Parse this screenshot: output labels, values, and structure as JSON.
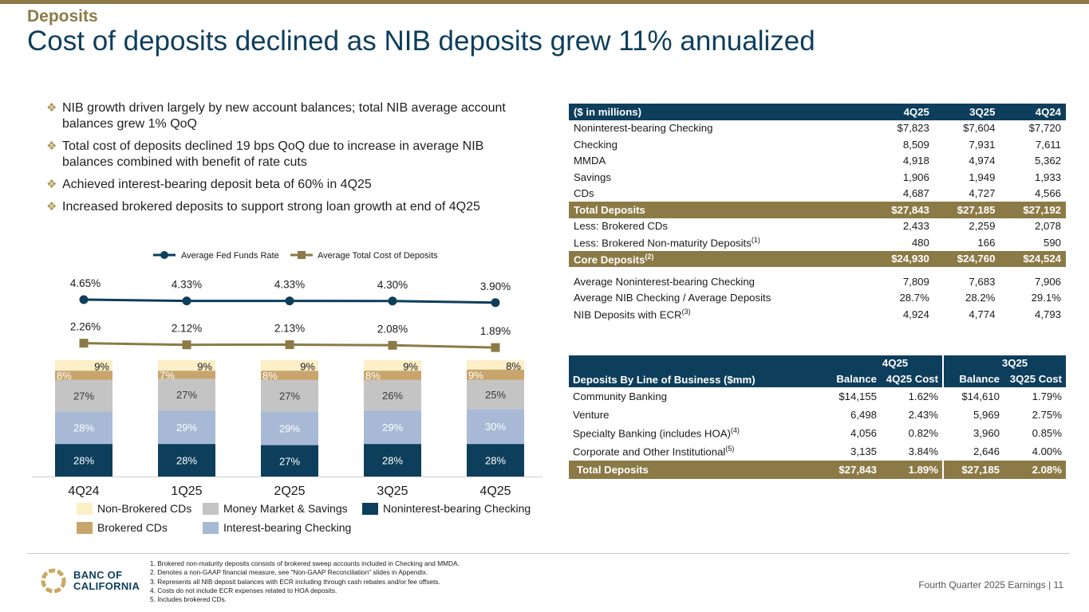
{
  "header": {
    "section": "Deposits",
    "title": "Cost of deposits declined as NIB deposits grew 11% annualized"
  },
  "bullets": [
    "NIB growth driven largely by new account balances; total NIB average account balances grew 1% QoQ",
    "Total cost of deposits declined 19 bps QoQ due to increase in average NIB balances combined with benefit of rate cuts",
    "Achieved interest-bearing deposit beta of 60% in 4Q25",
    "Increased brokered deposits to support strong loan growth at end of 4Q25"
  ],
  "chart_data": {
    "type": "bar",
    "stacked": true,
    "percent_stacked": true,
    "categories": [
      "4Q24",
      "1Q25",
      "2Q25",
      "3Q25",
      "4Q25"
    ],
    "series": [
      {
        "name": "Noninterest-bearing Checking",
        "color": "#0d3e5c",
        "labels": [
          "28%",
          "28%",
          "27%",
          "28%",
          "28%"
        ],
        "values": [
          28,
          28,
          27,
          28,
          28
        ]
      },
      {
        "name": "Interest-bearing Checking",
        "color": "#a7b9d4",
        "labels": [
          "28%",
          "29%",
          "29%",
          "29%",
          "30%"
        ],
        "values": [
          28,
          29,
          29,
          29,
          30
        ]
      },
      {
        "name": "Money Market & Savings",
        "color": "#c4c4c4",
        "labels": [
          "27%",
          "27%",
          "27%",
          "26%",
          "25%"
        ],
        "values": [
          27,
          27,
          27,
          26,
          25
        ]
      },
      {
        "name": "Brokered CDs",
        "color": "#c7a56c",
        "labels": [
          "8%",
          "7%",
          "8%",
          "8%",
          "9%"
        ],
        "values": [
          8,
          7,
          8,
          8,
          9
        ]
      },
      {
        "name": "Non-Brokered CDs",
        "color": "#fcefc7",
        "labels": [
          "9%",
          "9%",
          "9%",
          "9%",
          "8%"
        ],
        "values": [
          9,
          9,
          9,
          9,
          8
        ]
      }
    ],
    "lines": [
      {
        "name": "Average Fed Funds Rate",
        "color": "#0d3e5c",
        "values": [
          4.65,
          4.33,
          4.33,
          4.3,
          3.9
        ],
        "labels": [
          "4.65%",
          "4.33%",
          "4.33%",
          "4.30%",
          "3.90%"
        ]
      },
      {
        "name": "Average Total Cost of Deposits",
        "color": "#8c7a46",
        "values": [
          2.26,
          2.12,
          2.13,
          2.08,
          1.89
        ],
        "labels": [
          "2.26%",
          "2.12%",
          "2.13%",
          "2.08%",
          "1.89%"
        ]
      }
    ],
    "line_legend": [
      "Average Fed Funds Rate",
      "Average Total Cost of Deposits"
    ],
    "bar_legend": [
      "Non-Brokered CDs",
      "Money Market & Savings",
      "Noninterest-bearing Checking",
      "Brokered CDs",
      "Interest-bearing Checking"
    ]
  },
  "fin_table": {
    "header": [
      "($ in millions)",
      "4Q25",
      "3Q25",
      "4Q24"
    ],
    "rows": [
      {
        "label": "Noninterest-bearing Checking",
        "sup": "",
        "values": [
          "$7,823",
          "$7,604",
          "$7,720"
        ],
        "style": "normal"
      },
      {
        "label": "Checking",
        "sup": "",
        "values": [
          "8,509",
          "7,931",
          "7,611"
        ],
        "style": "normal"
      },
      {
        "label": "MMDA",
        "sup": "",
        "values": [
          "4,918",
          "4,974",
          "5,362"
        ],
        "style": "normal"
      },
      {
        "label": "Savings",
        "sup": "",
        "values": [
          "1,906",
          "1,949",
          "1,933"
        ],
        "style": "normal"
      },
      {
        "label": "CDs",
        "sup": "",
        "values": [
          "4,687",
          "4,727",
          "4,566"
        ],
        "style": "normal"
      },
      {
        "label": "Total Deposits",
        "sup": "",
        "values": [
          "$27,843",
          "$27,185",
          "$27,192"
        ],
        "style": "gold"
      },
      {
        "label": "Less: Brokered CDs",
        "sup": "",
        "values": [
          "2,433",
          "2,259",
          "2,078"
        ],
        "style": "normal"
      },
      {
        "label": "Less: Brokered Non-maturity Deposits",
        "sup": "(1)",
        "values": [
          "480",
          "166",
          "590"
        ],
        "style": "normal"
      },
      {
        "label": "Core Deposits",
        "sup": "(2)",
        "values": [
          "$24,930",
          "$24,760",
          "$24,524"
        ],
        "style": "gold"
      },
      {
        "label": "",
        "sup": "",
        "values": [
          "",
          "",
          ""
        ],
        "style": "spacer"
      },
      {
        "label": "Average Noninterest-bearing Checking",
        "sup": "",
        "values": [
          "7,809",
          "7,683",
          "7,906"
        ],
        "style": "normal"
      },
      {
        "label": "Average NIB Checking / Average Deposits",
        "sup": "",
        "values": [
          "28.7%",
          "28.2%",
          "29.1%"
        ],
        "style": "normal"
      },
      {
        "label": "NIB Deposits with ECR",
        "sup": "(3)",
        "values": [
          "4,924",
          "4,774",
          "4,793"
        ],
        "style": "normal"
      }
    ]
  },
  "lob_table": {
    "title": "Deposits By Line of Business ($mm)",
    "period_headers": [
      "4Q25",
      "3Q25"
    ],
    "col_headers": [
      "Balance",
      "4Q25 Cost",
      "Balance",
      "3Q25 Cost"
    ],
    "rows": [
      {
        "label": "Community Banking",
        "sup": "",
        "values": [
          "$14,155",
          "1.62%",
          "$14,610",
          "1.79%"
        ]
      },
      {
        "label": "Venture",
        "sup": "",
        "values": [
          "6,498",
          "2.43%",
          "5,969",
          "2.75%"
        ]
      },
      {
        "label": "Specialty Banking (includes HOA)",
        "sup": "(4)",
        "values": [
          "4,056",
          "0.82%",
          "3,960",
          "0.85%"
        ]
      },
      {
        "label": "Corporate and Other Institutional",
        "sup": "(5)",
        "values": [
          "3,135",
          "3.84%",
          "2,646",
          "4.00%"
        ]
      }
    ],
    "total": {
      "label": "Total Deposits",
      "values": [
        "$27,843",
        "1.89%",
        "$27,185",
        "2.08%"
      ]
    }
  },
  "footnotes": [
    "1.  Brokered non-maturity deposits consists of brokered sweep accounts included in Checking and MMDA.",
    "2.  Denotes a non-GAAP financial measure, see \"Non-GAAP Reconciliation\" slides in Appendix.",
    "3.  Represents all NIB deposit balances with ECR including through cash rebates and/or fee offsets.",
    "4.  Costs do not include ECR expenses related to HOA deposits.",
    "5.  Includes brokered CDs."
  ],
  "logo": {
    "line1": "BANC OF",
    "line2": "CALIFORNIA"
  },
  "footer": {
    "text": "Fourth Quarter 2025 Earnings |",
    "page": "11"
  }
}
